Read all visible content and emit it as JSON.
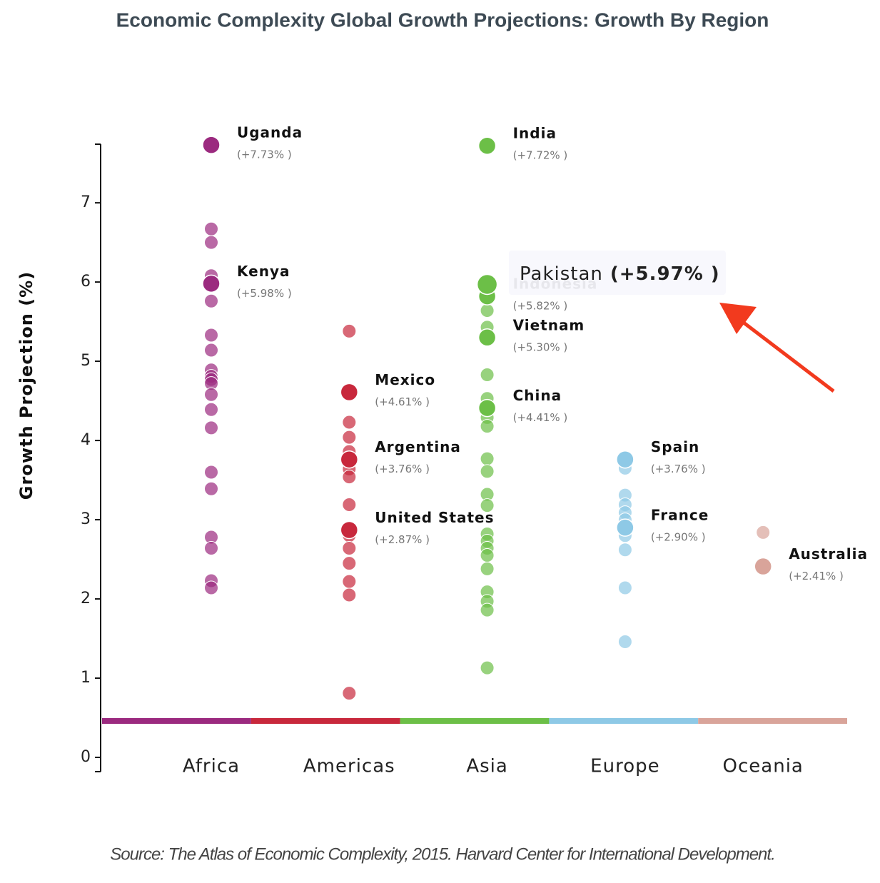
{
  "chart_data": {
    "type": "strip",
    "title": "Economic Complexity Global Growth Projections: Growth By Region",
    "y_label": "Growth Projection (%)",
    "source": "Source: The Atlas of Economic Complexity, 2015. Harvard Center for International Development.",
    "ylim": [
      -0.18,
      7.74
    ],
    "yticks": [
      0,
      1,
      2,
      3,
      4,
      5,
      6,
      7
    ],
    "series": [
      {
        "name": "Africa",
        "color": "#9b2a7f",
        "values": [
          6.67,
          6.5,
          6.08,
          5.76,
          5.33,
          5.14,
          4.89,
          4.81,
          4.77,
          4.72,
          4.58,
          4.39,
          4.16,
          3.6,
          3.39,
          2.78,
          2.64,
          2.23,
          2.14
        ],
        "highlights": [
          {
            "name": "Uganda",
            "value": 7.73,
            "value_label": "(+7.73% )"
          },
          {
            "name": "Kenya",
            "value": 5.98,
            "value_label": "(+5.98% )"
          }
        ]
      },
      {
        "name": "Americas",
        "color": "#c8283c",
        "values": [
          5.38,
          4.23,
          4.04,
          3.86,
          3.64,
          3.54,
          3.19,
          2.8,
          2.64,
          2.45,
          2.22,
          2.05,
          0.81
        ],
        "highlights": [
          {
            "name": "Mexico",
            "value": 4.61,
            "value_label": "(+4.61% )"
          },
          {
            "name": "Argentina",
            "value": 3.76,
            "value_label": "(+3.76% )"
          },
          {
            "name": "United States",
            "value": 2.87,
            "value_label": "(+2.87% )"
          }
        ]
      },
      {
        "name": "Asia",
        "color": "#6cbf47",
        "values": [
          5.64,
          5.43,
          4.83,
          4.53,
          4.29,
          4.18,
          3.77,
          3.61,
          3.32,
          3.18,
          2.82,
          2.73,
          2.64,
          2.55,
          2.38,
          2.09,
          1.97,
          1.86,
          1.13
        ],
        "highlights": [
          {
            "name": "India",
            "value": 7.72,
            "value_label": "(+7.72% )"
          },
          {
            "name": "Indonesia",
            "value": 5.82,
            "value_label": "(+5.82% )"
          },
          {
            "name": "Vietnam",
            "value": 5.3,
            "value_label": "(+5.30% )"
          },
          {
            "name": "China",
            "value": 4.41,
            "value_label": "(+4.41% )"
          }
        ],
        "hovered": {
          "name": "Pakistan",
          "value": 5.97,
          "value_label": "(+5.97% )"
        }
      },
      {
        "name": "Europe",
        "color": "#8ec9e6",
        "values": [
          3.65,
          3.31,
          3.19,
          3.09,
          3.0,
          2.8,
          2.62,
          2.14,
          1.46
        ],
        "highlights": [
          {
            "name": "Spain",
            "value": 3.76,
            "value_label": "(+3.76% )"
          },
          {
            "name": "France",
            "value": 2.9,
            "value_label": "(+2.90% )"
          }
        ]
      },
      {
        "name": "Oceania",
        "color": "#d9a49a",
        "values": [
          2.84
        ],
        "highlights": [
          {
            "name": "Australia",
            "value": 2.41,
            "value_label": "(+2.41% )"
          }
        ]
      }
    ]
  }
}
